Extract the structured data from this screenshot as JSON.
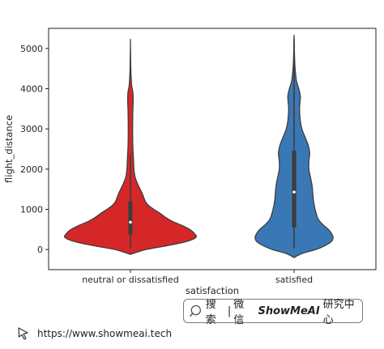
{
  "chart_data": {
    "type": "violin",
    "xlabel": "satisfaction",
    "ylabel": "flight_distance",
    "categories": [
      "neutral or dissatisfied",
      "satisfied"
    ],
    "colors": [
      "#d62728",
      "#3a78b5"
    ],
    "ylim": [
      -500,
      5500
    ],
    "yticks": [
      0,
      1000,
      2000,
      3000,
      4000,
      5000
    ],
    "violins": [
      {
        "category": "neutral or dissatisfied",
        "min": -120,
        "max": 5150,
        "q1": 380,
        "median": 680,
        "q3": 1200,
        "whisker_low": 30,
        "whisker_high": 2380,
        "profile": [
          [
            -120,
            0
          ],
          [
            0,
            20
          ],
          [
            100,
            48
          ],
          [
            200,
            72
          ],
          [
            300,
            84
          ],
          [
            400,
            82
          ],
          [
            500,
            76
          ],
          [
            600,
            66
          ],
          [
            700,
            54
          ],
          [
            800,
            45
          ],
          [
            900,
            38
          ],
          [
            1000,
            30
          ],
          [
            1100,
            23
          ],
          [
            1200,
            19
          ],
          [
            1400,
            15
          ],
          [
            1600,
            10
          ],
          [
            1800,
            6
          ],
          [
            2000,
            4.5
          ],
          [
            2200,
            4
          ],
          [
            2400,
            3.5
          ],
          [
            2600,
            3
          ],
          [
            3000,
            2.8
          ],
          [
            3400,
            3
          ],
          [
            3700,
            3.5
          ],
          [
            3900,
            3.2
          ],
          [
            4100,
            1.5
          ],
          [
            4500,
            0.5
          ],
          [
            5150,
            0
          ]
        ]
      },
      {
        "category": "satisfied",
        "min": -200,
        "max": 5250,
        "q1": 550,
        "median": 1430,
        "q3": 2460,
        "whisker_low": 30,
        "whisker_high": 5250,
        "profile": [
          [
            -200,
            0
          ],
          [
            -100,
            10
          ],
          [
            0,
            28
          ],
          [
            100,
            40
          ],
          [
            200,
            48
          ],
          [
            300,
            50
          ],
          [
            400,
            48
          ],
          [
            500,
            44
          ],
          [
            600,
            38
          ],
          [
            700,
            33
          ],
          [
            800,
            30
          ],
          [
            1000,
            27
          ],
          [
            1200,
            25
          ],
          [
            1400,
            24
          ],
          [
            1600,
            23
          ],
          [
            1800,
            21
          ],
          [
            2000,
            19
          ],
          [
            2200,
            19
          ],
          [
            2400,
            20
          ],
          [
            2600,
            18
          ],
          [
            2800,
            14
          ],
          [
            3000,
            10
          ],
          [
            3200,
            8
          ],
          [
            3500,
            7
          ],
          [
            3800,
            8
          ],
          [
            4000,
            6
          ],
          [
            4200,
            3
          ],
          [
            4600,
            1
          ],
          [
            5250,
            0
          ]
        ]
      }
    ]
  },
  "badge": {
    "search": "搜索",
    "separator": "|",
    "channel": "微信",
    "brand": "ShowMeAI",
    "org": "研究中心"
  },
  "footer": {
    "url": "https://www.showmeai.tech"
  },
  "icons": {
    "badge": "magnifier-icon",
    "footer": "cursor-icon"
  }
}
